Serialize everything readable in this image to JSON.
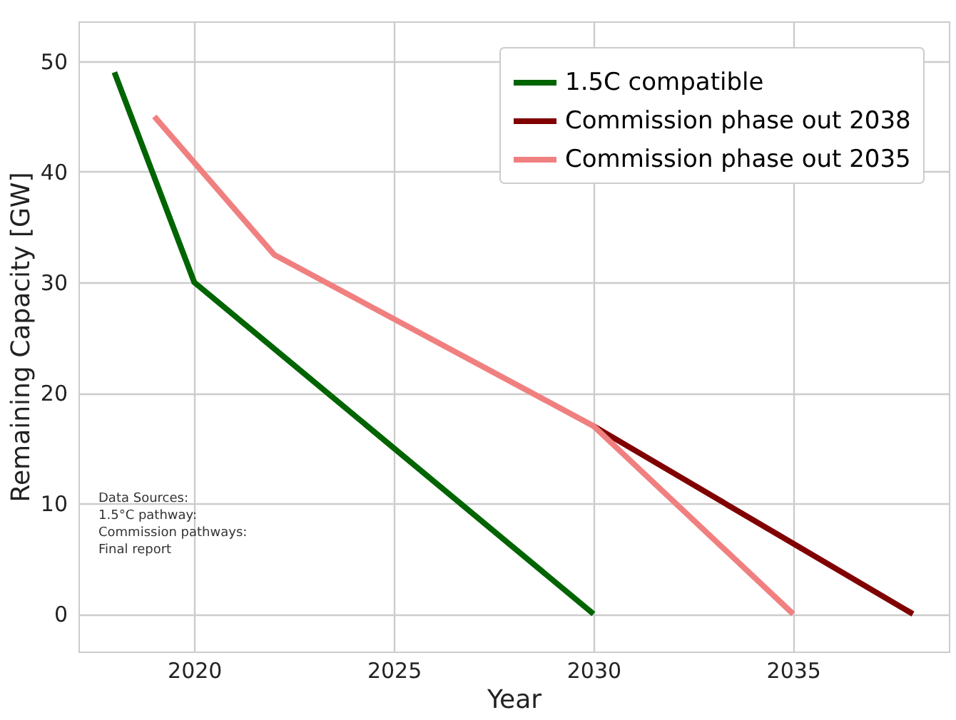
{
  "chart_data": {
    "type": "line",
    "xlabel": "Year",
    "ylabel": "Remaining Capacity [GW]",
    "xlim": [
      2017.1,
      2038.9
    ],
    "xticks": [
      2020,
      2025,
      2030,
      2035
    ],
    "ylim": [
      -3.4,
      53.6
    ],
    "yticks": [
      0,
      10,
      20,
      30,
      40,
      50
    ],
    "grid": true,
    "legend": "top right",
    "line_style": "solid",
    "annotations": [
      "Data Sources:\n1.5°C pathway:\nCommission pathways:\nFinal report"
    ],
    "series": [
      {
        "name": "1.5C compatible",
        "color": "#006400",
        "x": [
          2018,
          2020,
          2030
        ],
        "values": [
          49,
          30,
          0
        ]
      },
      {
        "name": "Commission phase out 2038",
        "color": "#800000",
        "x": [
          2030,
          2038
        ],
        "values": [
          17,
          0
        ]
      },
      {
        "name": "Commission phase out 2035",
        "color": "#f08080",
        "x": [
          2019,
          2022,
          2030,
          2035
        ],
        "values": [
          45,
          32.5,
          17,
          0
        ]
      }
    ]
  }
}
